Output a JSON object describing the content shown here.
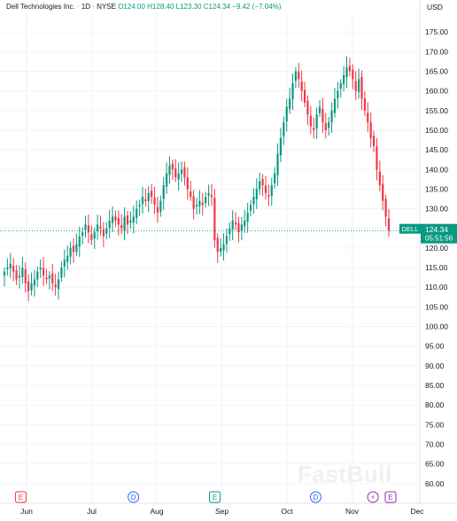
{
  "header": {
    "title": "Dell Technologies Inc.",
    "interval": "1D",
    "exchange": "NYSE",
    "open": "O124.00",
    "high": "H128.40",
    "low": "L123.30",
    "close": "C124.34",
    "change": "−9.42",
    "change_pct": "(−7.04%)"
  },
  "watermark": "FastBull",
  "price_tag": {
    "symbol": "DELL",
    "price": "124.34",
    "countdown": "05:51:56",
    "color": "#089981"
  },
  "events": [
    {
      "label": "E",
      "month_index": 0.02,
      "color": "#f23645"
    },
    {
      "label": "D",
      "month_index": 1.75,
      "color": "#2962ff"
    },
    {
      "label": "E",
      "month_index": 3.0,
      "color": "#089981"
    },
    {
      "label": "D",
      "month_index": 4.55,
      "color": "#2962ff"
    },
    {
      "label": "⚡",
      "month_index": 5.43,
      "color": "#9c27b0"
    },
    {
      "label": "E",
      "month_index": 5.7,
      "color": "#9c27b0"
    }
  ],
  "colors": {
    "up": "#089981",
    "down": "#f23645",
    "grid": "#f0f3fa",
    "axis": "#e0e3eb"
  },
  "chart_data": {
    "type": "candlestick",
    "title": "Dell Technologies Inc. · 1D · NYSE",
    "yunit": "USD",
    "ylim": [
      55,
      180
    ],
    "y_ticks": [
      60,
      65,
      70,
      75,
      80,
      85,
      90,
      95,
      100,
      105,
      110,
      115,
      120,
      125,
      130,
      135,
      140,
      145,
      150,
      155,
      160,
      165,
      170,
      175
    ],
    "x_labels": [
      "Jun",
      "Jul",
      "Aug",
      "Sep",
      "Oct",
      "Nov",
      "Dec"
    ],
    "grid": true,
    "legend": "top-left",
    "last_price": 124.34,
    "series": [
      {
        "values": [
          114,
          115,
          116,
          114,
          112,
          113,
          115,
          111,
          109,
          111,
          112,
          114,
          115,
          113,
          112,
          113,
          111,
          110,
          112,
          115,
          117,
          118,
          120,
          119,
          121,
          123,
          124,
          126,
          124,
          122,
          124,
          126,
          125,
          123,
          125,
          127,
          128,
          127,
          126,
          125,
          128,
          126,
          127,
          128,
          130,
          131,
          133,
          132,
          134,
          133,
          131,
          129,
          132,
          136,
          139,
          141,
          140,
          138,
          139,
          140,
          138,
          135,
          133,
          130,
          131,
          132,
          131,
          133,
          134,
          133,
          122,
          119,
          120,
          121,
          123,
          125,
          127,
          126,
          124,
          126,
          127,
          129,
          131,
          133,
          135,
          137,
          136,
          134,
          133,
          136,
          139,
          144,
          148,
          152,
          156,
          158,
          162,
          165,
          163,
          160,
          157,
          154,
          151,
          150,
          154,
          156,
          152,
          150,
          152,
          155,
          158,
          160,
          162,
          164,
          166,
          165,
          163,
          160,
          163,
          158,
          155,
          152,
          148,
          146,
          140,
          136,
          132,
          128,
          124.34
        ]
      }
    ]
  }
}
